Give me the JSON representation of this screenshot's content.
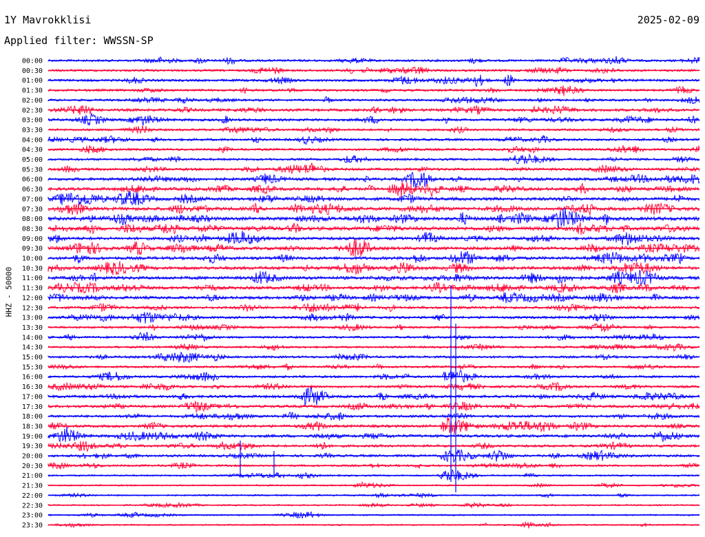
{
  "header": {
    "station": "1Y Mavrokklisi",
    "date": "2025-02-09",
    "filter": "Applied filter: WWSSN-SP",
    "channel_label": "HHZ - 50000"
  },
  "colors": {
    "odd": "#0000ff",
    "even": "#ff0033"
  },
  "chart_data": {
    "type": "line",
    "title": "1Y Mavrokklisi",
    "subtitle": "Applied filter: WWSSN-SP",
    "ylabel": "HHZ - 50000",
    "row_labels": [
      "00:00",
      "00:30",
      "01:00",
      "01:30",
      "02:00",
      "02:30",
      "03:00",
      "03:30",
      "04:00",
      "04:30",
      "05:00",
      "05:30",
      "06:00",
      "06:30",
      "07:00",
      "07:30",
      "08:00",
      "08:30",
      "09:00",
      "09:30",
      "10:00",
      "10:30",
      "11:00",
      "11:30",
      "12:00",
      "12:30",
      "13:00",
      "13:30",
      "14:00",
      "14:30",
      "15:00",
      "15:30",
      "16:00",
      "16:30",
      "17:00",
      "17:30",
      "18:00",
      "18:30",
      "19:00",
      "19:30",
      "20:00",
      "20:30",
      "21:00",
      "21:30",
      "22:00",
      "22:30",
      "23:00",
      "23:30"
    ],
    "row_activity": [
      0.45,
      0.4,
      0.5,
      0.45,
      0.45,
      0.6,
      0.55,
      0.4,
      0.5,
      0.45,
      0.45,
      0.55,
      0.7,
      0.75,
      0.8,
      0.9,
      0.95,
      0.95,
      0.7,
      0.75,
      0.75,
      0.8,
      0.8,
      0.75,
      0.7,
      0.55,
      0.55,
      0.4,
      0.4,
      0.35,
      0.45,
      0.4,
      0.45,
      0.5,
      0.6,
      0.6,
      0.5,
      0.6,
      0.65,
      0.5,
      0.5,
      0.35,
      0.2,
      0.15,
      0.15,
      0.15,
      0.15,
      0.12
    ],
    "events": [
      {
        "time": "16:00",
        "strength": 1.0
      },
      {
        "time": "18:30",
        "strength": 1.0
      },
      {
        "time": "20:00",
        "strength": 0.9
      },
      {
        "time": "21:00",
        "strength": 0.8
      }
    ]
  }
}
